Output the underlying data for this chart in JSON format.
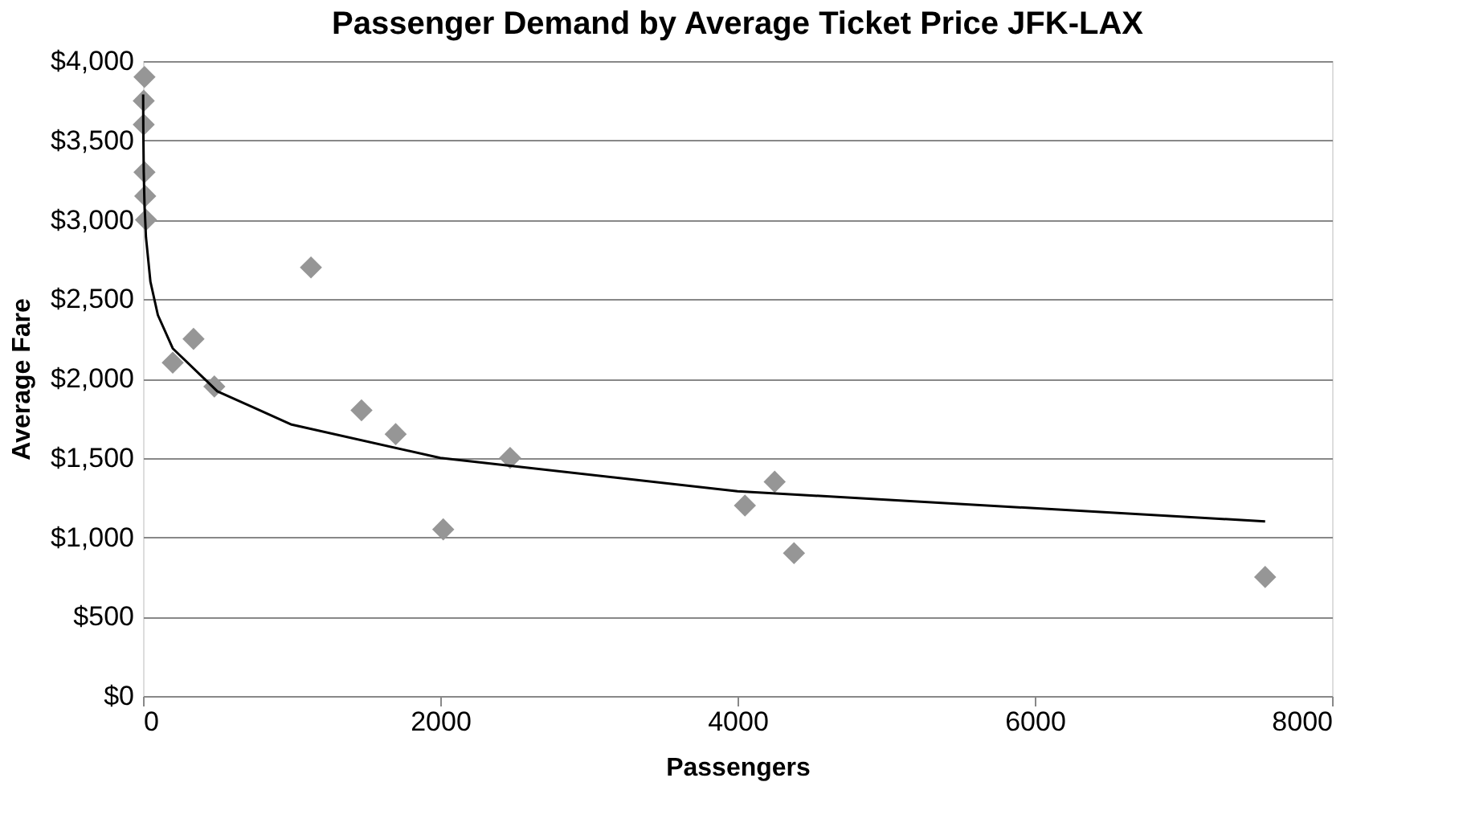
{
  "chart_data": {
    "type": "scatter",
    "title": "Passenger Demand by Average Ticket Price JFK-LAX",
    "xlabel": "Passengers",
    "ylabel": "Average Fare",
    "xlim": [
      0,
      8000
    ],
    "xticks": [
      0,
      2000,
      4000,
      6000,
      8000
    ],
    "ylim": [
      0,
      4000
    ],
    "yticks": [
      {
        "value": 0,
        "label": "$0"
      },
      {
        "value": 500,
        "label": "$500"
      },
      {
        "value": 1000,
        "label": "$1,000"
      },
      {
        "value": 1500,
        "label": "$1,500"
      },
      {
        "value": 2000,
        "label": "$2,000"
      },
      {
        "value": 2500,
        "label": "$2,500"
      },
      {
        "value": 3000,
        "label": "$3,000"
      },
      {
        "value": 3500,
        "label": "$3,500"
      },
      {
        "value": 4000,
        "label": "$4,000"
      }
    ],
    "grid": "y",
    "series": [
      {
        "marker": "diamond",
        "color": "#969696",
        "x": [
          10,
          5,
          5,
          10,
          15,
          20,
          1130,
          200,
          340,
          480,
          1470,
          1700,
          2020,
          2470,
          4050,
          4250,
          4380,
          7550
        ],
        "values": [
          3900,
          3750,
          3600,
          3300,
          3150,
          3000,
          2700,
          2100,
          2250,
          1950,
          1800,
          1650,
          1050,
          1500,
          1200,
          1350,
          900,
          750
        ]
      },
      {
        "type": "line",
        "line_style": "solid",
        "color": "#000000",
        "x": [
          1,
          2,
          5,
          10,
          20,
          50,
          100,
          200,
          500,
          1000,
          2000,
          4000,
          7550
        ],
        "values": [
          3790,
          3580,
          3300,
          3100,
          2890,
          2610,
          2400,
          2190,
          1920,
          1710,
          1500,
          1290,
          1100
        ]
      }
    ]
  }
}
